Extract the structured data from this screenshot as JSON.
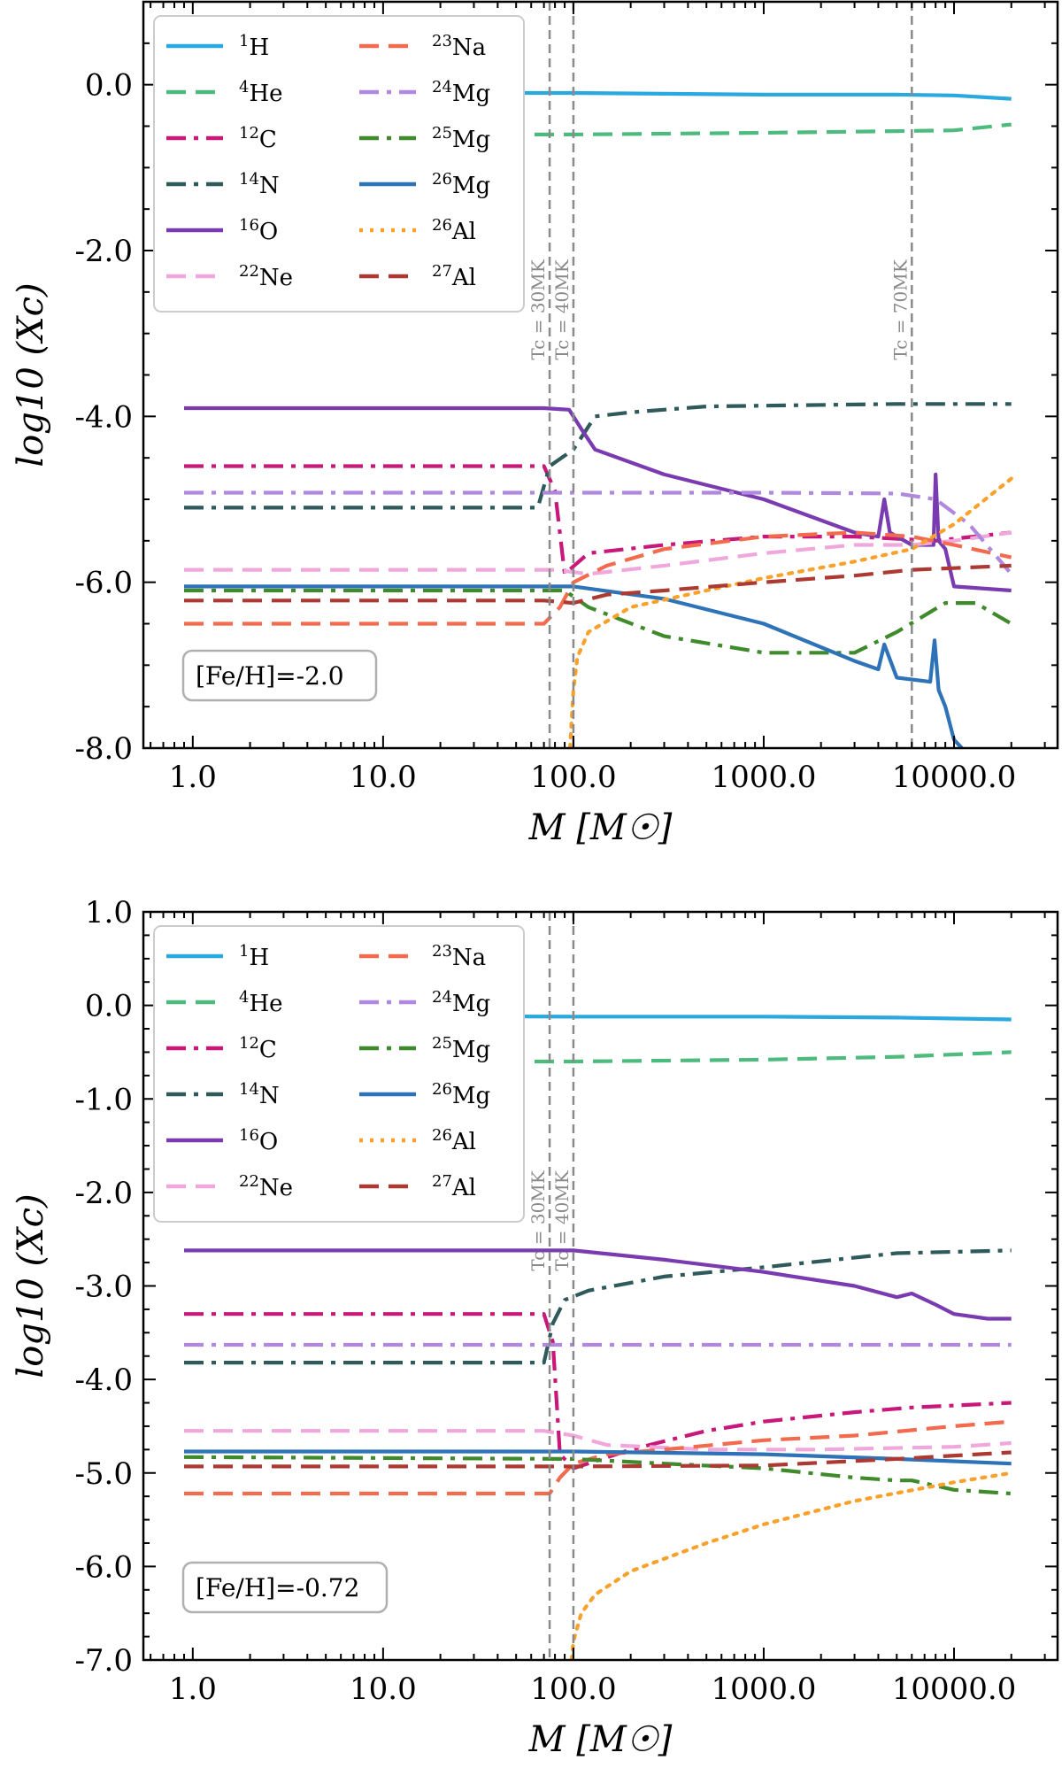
{
  "chart_data": [
    {
      "type": "line",
      "panel": "top",
      "xlabel": "M [M☉]",
      "ylabel": "log10 (Xc)",
      "xscale": "log",
      "xlim": [
        0.55,
        35000
      ],
      "ylim": [
        -8.0,
        1.0
      ],
      "x_ticks": [
        1,
        10,
        100,
        1000,
        10000
      ],
      "x_tick_labels": [
        "1.0",
        "10.0",
        "100.0",
        "1000.0",
        "10000.0"
      ],
      "y_ticks": [
        -8,
        -6,
        -4,
        -2,
        0
      ],
      "y_tick_labels": [
        "-8.0",
        "-6.0",
        "-4.0",
        "-2.0",
        "0.0"
      ],
      "annotation": "[Fe/H]=-2.0",
      "legend_position": "upper-left",
      "vlines": [
        {
          "x": 75,
          "label": "Tc = 30MK"
        },
        {
          "x": 100,
          "label": "Tc = 40MK"
        },
        {
          "x": 6000,
          "label": "Tc = 70MK"
        }
      ],
      "series": [
        {
          "name": "1H",
          "sup": "1",
          "el": "H",
          "color": "#29a9e0",
          "style": "solid",
          "x": [
            0.9,
            100,
            1000,
            5000,
            10000,
            20000
          ],
          "values": [
            -0.1,
            -0.1,
            -0.12,
            -0.12,
            -0.13,
            -0.17
          ]
        },
        {
          "name": "4He",
          "sup": "4",
          "el": "He",
          "color": "#4dbb7d",
          "style": "dashed",
          "x": [
            0.9,
            100,
            1000,
            5000,
            10000,
            20000
          ],
          "values": [
            -0.6,
            -0.6,
            -0.58,
            -0.56,
            -0.55,
            -0.48
          ]
        },
        {
          "name": "12C",
          "sup": "12",
          "el": "C",
          "color": "#c8187a",
          "style": "dashdot",
          "x": [
            0.9,
            70,
            80,
            90,
            120,
            300,
            1000,
            3000,
            8000,
            20000
          ],
          "values": [
            -4.6,
            -4.6,
            -4.9,
            -5.9,
            -5.65,
            -5.55,
            -5.45,
            -5.45,
            -5.5,
            -5.4
          ]
        },
        {
          "name": "14N",
          "sup": "14",
          "el": "N",
          "color": "#2e5a5c",
          "style": "dashdot",
          "x": [
            0.9,
            65,
            75,
            100,
            130,
            200,
            500,
            1000,
            5000,
            20000
          ],
          "values": [
            -5.1,
            -5.1,
            -4.6,
            -4.4,
            -4.0,
            -3.95,
            -3.88,
            -3.87,
            -3.85,
            -3.85
          ]
        },
        {
          "name": "16O",
          "sup": "16",
          "el": "O",
          "color": "#7a3bb0",
          "style": "solid",
          "x": [
            0.9,
            70,
            95,
            110,
            130,
            300,
            1000,
            3000,
            4000,
            4300,
            4600,
            6000,
            7800,
            8000,
            8300,
            9000,
            10000,
            20000
          ],
          "values": [
            -3.9,
            -3.9,
            -3.92,
            -4.15,
            -4.4,
            -4.7,
            -5.0,
            -5.4,
            -5.45,
            -5.0,
            -5.4,
            -5.55,
            -5.55,
            -4.7,
            -5.5,
            -5.6,
            -6.05,
            -6.1
          ]
        },
        {
          "name": "22Ne",
          "sup": "22",
          "el": "Ne",
          "color": "#f0a8dc",
          "style": "dashed",
          "x": [
            0.9,
            80,
            120,
            300,
            1000,
            3000,
            6000,
            10000,
            20000
          ],
          "values": [
            -5.85,
            -5.85,
            -5.9,
            -5.8,
            -5.65,
            -5.55,
            -5.55,
            -5.5,
            -5.4
          ]
        },
        {
          "name": "23Na",
          "sup": "23",
          "el": "Na",
          "color": "#f26b4f",
          "style": "dashed",
          "x": [
            0.9,
            70,
            85,
            100,
            150,
            300,
            1000,
            3000,
            6000,
            10000,
            20000
          ],
          "values": [
            -6.5,
            -6.5,
            -6.3,
            -6.0,
            -5.8,
            -5.6,
            -5.45,
            -5.4,
            -5.45,
            -5.55,
            -5.7
          ]
        },
        {
          "name": "24Mg",
          "sup": "24",
          "el": "Mg",
          "color": "#b088e0",
          "style": "dashdot",
          "x": [
            0.9,
            1000,
            5000,
            8000,
            12000,
            20000
          ],
          "values": [
            -4.92,
            -4.92,
            -4.93,
            -5.0,
            -5.3,
            -5.9
          ]
        },
        {
          "name": "25Mg",
          "sup": "25",
          "el": "Mg",
          "color": "#3f8a2a",
          "style": "dashdot",
          "x": [
            0.9,
            90,
            120,
            300,
            1000,
            3000,
            5000,
            9000,
            13000,
            20000
          ],
          "values": [
            -6.1,
            -6.1,
            -6.3,
            -6.65,
            -6.85,
            -6.85,
            -6.6,
            -6.25,
            -6.25,
            -6.5
          ]
        },
        {
          "name": "26Mg",
          "sup": "26",
          "el": "Mg",
          "color": "#2e72b8",
          "style": "solid",
          "x": [
            0.9,
            100,
            300,
            1000,
            3000,
            4000,
            4300,
            5000,
            7500,
            7900,
            8300,
            9000,
            10000,
            11000
          ],
          "values": [
            -6.05,
            -6.05,
            -6.2,
            -6.5,
            -6.95,
            -7.05,
            -6.75,
            -7.15,
            -7.2,
            -6.7,
            -7.3,
            -7.5,
            -7.9,
            -8.0
          ]
        },
        {
          "name": "26Al",
          "sup": "26",
          "el": "Al",
          "color": "#f9a12b",
          "style": "dotted",
          "x": [
            96,
            100,
            105,
            120,
            200,
            500,
            1000,
            3000,
            6000,
            10000,
            20000
          ],
          "values": [
            -8.0,
            -7.3,
            -6.9,
            -6.6,
            -6.3,
            -6.1,
            -5.95,
            -5.75,
            -5.6,
            -5.3,
            -4.75
          ]
        },
        {
          "name": "27Al",
          "sup": "27",
          "el": "Al",
          "color": "#ad3a32",
          "style": "dashed",
          "x": [
            0.9,
            70,
            100,
            150,
            300,
            1000,
            3000,
            6000,
            10000,
            20000
          ],
          "values": [
            -6.22,
            -6.22,
            -6.25,
            -6.15,
            -6.1,
            -6.0,
            -5.92,
            -5.85,
            -5.83,
            -5.8
          ]
        }
      ]
    },
    {
      "type": "line",
      "panel": "bottom",
      "xlabel": "M [M☉]",
      "ylabel": "log10 (Xc)",
      "xscale": "log",
      "xlim": [
        0.55,
        35000
      ],
      "ylim": [
        -7.0,
        1.0
      ],
      "x_ticks": [
        1,
        10,
        100,
        1000,
        10000
      ],
      "x_tick_labels": [
        "1.0",
        "10.0",
        "100.0",
        "1000.0",
        "10000.0"
      ],
      "y_ticks": [
        -7,
        -6,
        -5,
        -4,
        -3,
        -2,
        -1,
        0,
        1
      ],
      "y_tick_labels": [
        "-7.0",
        "-6.0",
        "-5.0",
        "-4.0",
        "-3.0",
        "-2.0",
        "-1.0",
        "0.0",
        "1.0"
      ],
      "annotation": "[Fe/H]=-0.72",
      "legend_position": "upper-left",
      "vlines": [
        {
          "x": 75,
          "label": "Tc = 30MK"
        },
        {
          "x": 100,
          "label": "Tc = 40MK"
        }
      ],
      "series": [
        {
          "name": "1H",
          "sup": "1",
          "el": "H",
          "color": "#29a9e0",
          "style": "solid",
          "x": [
            0.9,
            100,
            1000,
            5000,
            20000
          ],
          "values": [
            -0.11,
            -0.12,
            -0.12,
            -0.13,
            -0.15
          ]
        },
        {
          "name": "4He",
          "sup": "4",
          "el": "He",
          "color": "#4dbb7d",
          "style": "dashed",
          "x": [
            0.9,
            100,
            1000,
            5000,
            20000
          ],
          "values": [
            -0.6,
            -0.6,
            -0.58,
            -0.55,
            -0.5
          ]
        },
        {
          "name": "12C",
          "sup": "12",
          "el": "C",
          "color": "#c8187a",
          "style": "dashdot",
          "x": [
            0.9,
            70,
            78,
            85,
            100,
            200,
            500,
            1000,
            3000,
            6000,
            20000
          ],
          "values": [
            -3.3,
            -3.3,
            -3.6,
            -4.8,
            -4.95,
            -4.75,
            -4.55,
            -4.45,
            -4.35,
            -4.3,
            -4.25
          ]
        },
        {
          "name": "14N",
          "sup": "14",
          "el": "N",
          "color": "#2e5a5c",
          "style": "dashdot",
          "x": [
            0.9,
            70,
            78,
            90,
            120,
            300,
            1000,
            5000,
            20000
          ],
          "values": [
            -3.82,
            -3.82,
            -3.4,
            -3.15,
            -3.05,
            -2.9,
            -2.8,
            -2.65,
            -2.62
          ]
        },
        {
          "name": "16O",
          "sup": "16",
          "el": "O",
          "color": "#7a3bb0",
          "style": "solid",
          "x": [
            0.9,
            100,
            300,
            1000,
            3000,
            5000,
            6000,
            8000,
            10000,
            15000,
            20000
          ],
          "values": [
            -2.62,
            -2.62,
            -2.72,
            -2.85,
            -3.0,
            -3.12,
            -3.08,
            -3.2,
            -3.3,
            -3.35,
            -3.35
          ]
        },
        {
          "name": "22Ne",
          "sup": "22",
          "el": "Ne",
          "color": "#f0a8dc",
          "style": "dashed",
          "x": [
            0.9,
            70,
            100,
            150,
            500,
            2000,
            10000,
            20000
          ],
          "values": [
            -4.55,
            -4.55,
            -4.6,
            -4.7,
            -4.75,
            -4.75,
            -4.72,
            -4.68
          ]
        },
        {
          "name": "23Na",
          "sup": "23",
          "el": "Na",
          "color": "#f26b4f",
          "style": "dashed",
          "x": [
            0.9,
            75,
            85,
            100,
            150,
            300,
            1000,
            3000,
            10000,
            20000
          ],
          "values": [
            -5.22,
            -5.22,
            -5.05,
            -4.9,
            -4.8,
            -4.75,
            -4.65,
            -4.6,
            -4.5,
            -4.45
          ]
        },
        {
          "name": "24Mg",
          "sup": "24",
          "el": "Mg",
          "color": "#b088e0",
          "style": "dashdot",
          "x": [
            0.9,
            20000
          ],
          "values": [
            -3.63,
            -3.63
          ]
        },
        {
          "name": "25Mg",
          "sup": "25",
          "el": "Mg",
          "color": "#3f8a2a",
          "style": "dashdot",
          "x": [
            0.9,
            100,
            300,
            1000,
            3000,
            5000,
            6000,
            10000,
            20000
          ],
          "values": [
            -4.83,
            -4.85,
            -4.9,
            -4.95,
            -5.05,
            -5.08,
            -5.08,
            -5.18,
            -5.22
          ]
        },
        {
          "name": "26Mg",
          "sup": "26",
          "el": "Mg",
          "color": "#2e72b8",
          "style": "solid",
          "x": [
            0.9,
            100,
            1000,
            5000,
            20000
          ],
          "values": [
            -4.77,
            -4.77,
            -4.8,
            -4.85,
            -4.9
          ]
        },
        {
          "name": "26Al",
          "sup": "26",
          "el": "Al",
          "color": "#f9a12b",
          "style": "dotted",
          "x": [
            98,
            100,
            110,
            130,
            200,
            500,
            1000,
            3000,
            10000,
            20000
          ],
          "values": [
            -7.0,
            -6.8,
            -6.5,
            -6.3,
            -6.05,
            -5.75,
            -5.55,
            -5.3,
            -5.1,
            -5.0
          ]
        },
        {
          "name": "27Al",
          "sup": "27",
          "el": "Al",
          "color": "#ad3a32",
          "style": "dashed",
          "x": [
            0.9,
            100,
            1000,
            5000,
            20000
          ],
          "values": [
            -4.93,
            -4.93,
            -4.92,
            -4.85,
            -4.78
          ]
        }
      ]
    }
  ]
}
